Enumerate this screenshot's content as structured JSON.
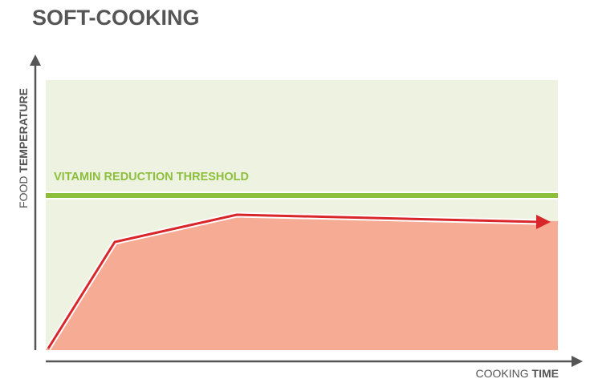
{
  "title": "SOFT-COOKING",
  "threshold_label": "VITAMIN REDUCTION THRESHOLD",
  "y_axis": {
    "light": "FOOD",
    "bold": "TEMPERATURE"
  },
  "x_axis": {
    "light": "COOKING",
    "bold": "TIME"
  }
}
